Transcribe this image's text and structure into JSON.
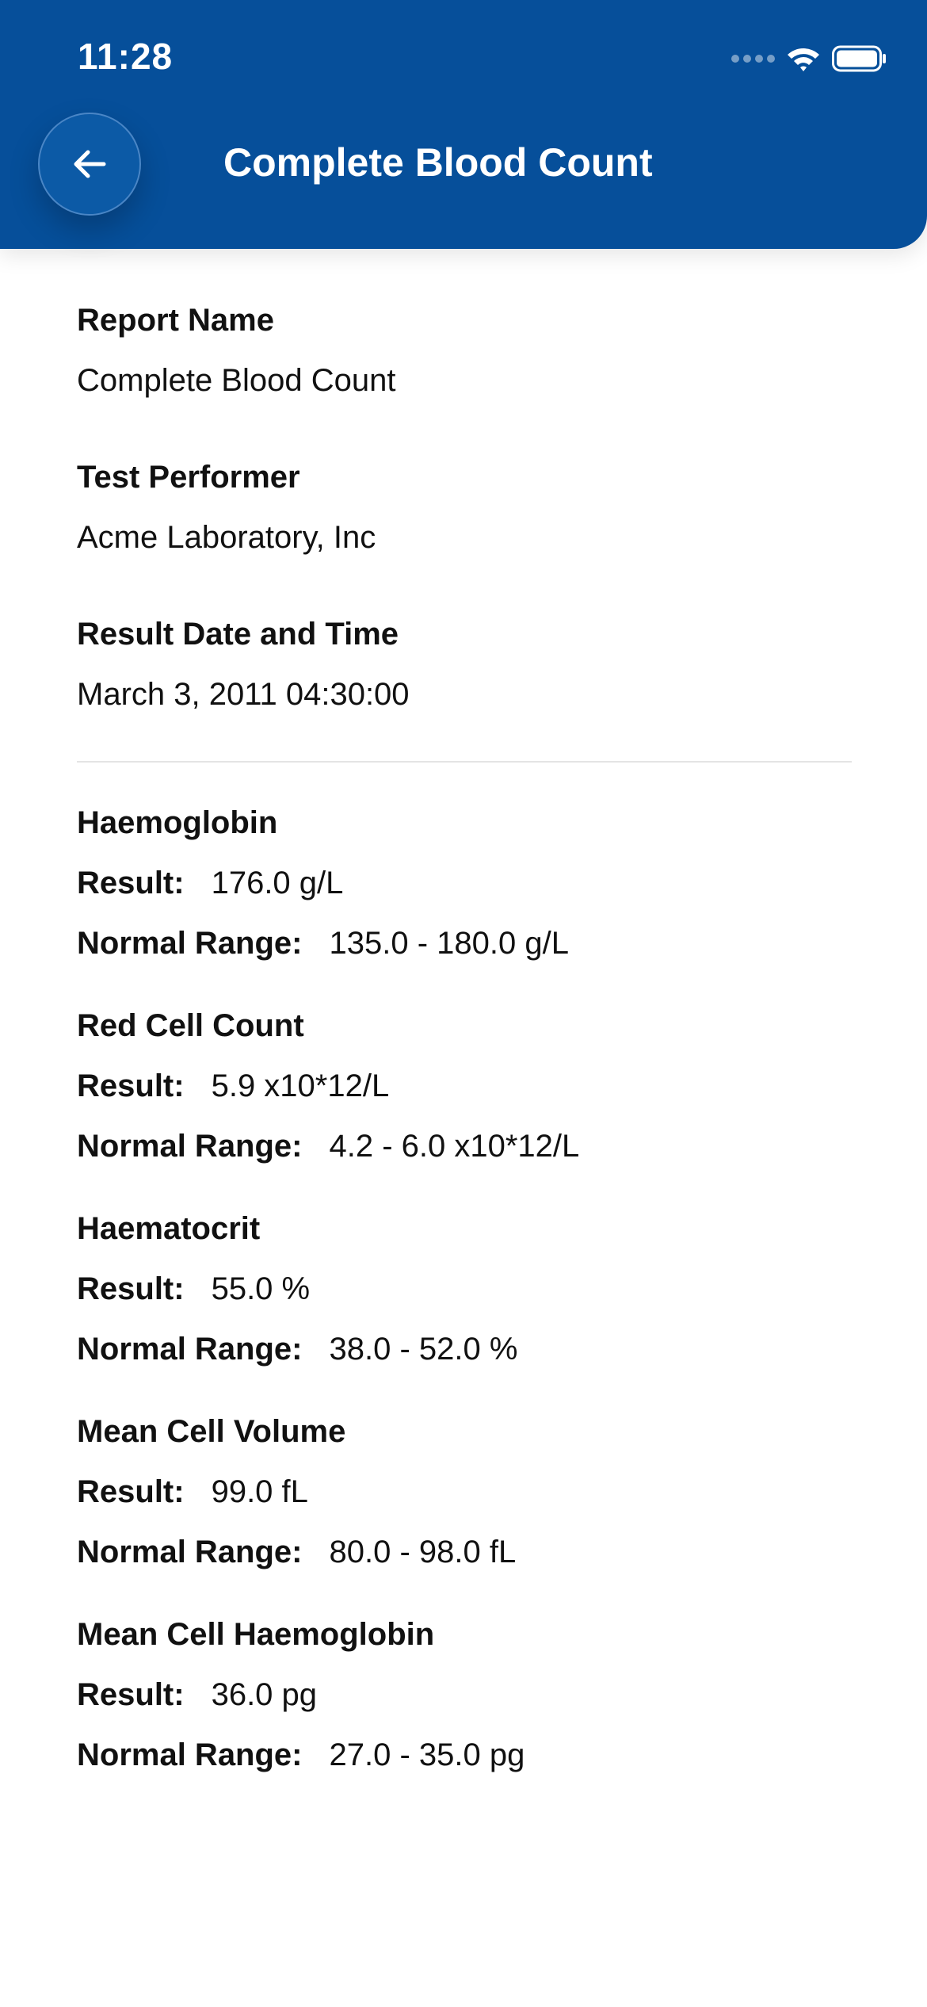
{
  "status_bar": {
    "time": "11:28",
    "icons": [
      "signal-dots-icon",
      "wifi-icon",
      "battery-icon"
    ]
  },
  "header": {
    "title": "Complete Blood Count",
    "back_icon": "arrow-left-icon",
    "background_color": "#064f9a"
  },
  "report": {
    "fields": [
      {
        "label": "Report Name",
        "value": "Complete Blood Count"
      },
      {
        "label": "Test Performer",
        "value": "Acme Laboratory, Inc"
      },
      {
        "label": "Result Date and Time",
        "value": "March 3, 2011 04:30:00"
      }
    ]
  },
  "result_label": "Result:",
  "range_label": "Normal Range:",
  "tests": [
    {
      "name": "Haemoglobin",
      "result": "176.0 g/L",
      "range": "135.0 - 180.0 g/L"
    },
    {
      "name": "Red Cell Count",
      "result": "5.9 x10*12/L",
      "range": "4.2 - 6.0 x10*12/L"
    },
    {
      "name": "Haematocrit",
      "result": "55.0 %",
      "range": "38.0 - 52.0 %"
    },
    {
      "name": "Mean Cell Volume",
      "result": "99.0 fL",
      "range": "80.0 - 98.0 fL"
    },
    {
      "name": "Mean Cell Haemoglobin",
      "result": "36.0 pg",
      "range": "27.0 - 35.0 pg"
    }
  ]
}
